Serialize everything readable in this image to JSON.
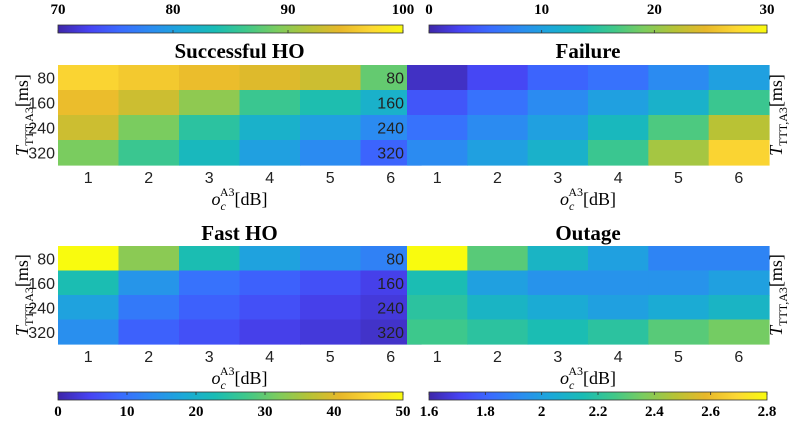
{
  "palette": [
    "#3e26a8",
    "#4743f3",
    "#3a6bff",
    "#2a8df0",
    "#1ba9d8",
    "#19bcb5",
    "#3fc88a",
    "#7ccc5e",
    "#b6c336",
    "#e8b82a",
    "#fcd733",
    "#f9fb0e"
  ],
  "chart_data": [
    {
      "type": "heatmap",
      "title": "Successful HO",
      "xlabel_base": "o",
      "xlabel_sub": "c",
      "xlabel_sup": "A3",
      "xlabel_unit": "[dB]",
      "ylabel_base": "T",
      "ylabel_sub": "TTT,A3",
      "ylabel_unit": "[ms]",
      "ylabel_side": "left",
      "x": [
        "1",
        "2",
        "3",
        "4",
        "5",
        "6"
      ],
      "y": [
        "80",
        "160",
        "240",
        "320"
      ],
      "z": [
        [
          97,
          96,
          95,
          94,
          93,
          88
        ],
        [
          95,
          93,
          90,
          86,
          84,
          82
        ],
        [
          93,
          89,
          85,
          82,
          80,
          78
        ],
        [
          89,
          86,
          83,
          80,
          78,
          75
        ]
      ],
      "clim": [
        70,
        100
      ],
      "colorbar_ticks": [
        "70",
        "80",
        "90",
        "100"
      ],
      "colorbar_position": "top"
    },
    {
      "type": "heatmap",
      "title": "Failure",
      "xlabel_base": "o",
      "xlabel_sub": "c",
      "xlabel_sup": "A3",
      "xlabel_unit": "[dB]",
      "ylabel_base": "T",
      "ylabel_sub": "TTT,A3",
      "ylabel_unit": "[ms]",
      "ylabel_side": "right",
      "x": [
        "1",
        "2",
        "3",
        "4",
        "5",
        "6"
      ],
      "y": [
        "80",
        "160",
        "240",
        "320"
      ],
      "z": [
        [
          1,
          3,
          5,
          6,
          8,
          10
        ],
        [
          4,
          6,
          8,
          10,
          12,
          16
        ],
        [
          6,
          8,
          10,
          13,
          17,
          22
        ],
        [
          8,
          10,
          12,
          16,
          21,
          27
        ]
      ],
      "clim": [
        0,
        30
      ],
      "colorbar_ticks": [
        "0",
        "10",
        "20",
        "30"
      ],
      "colorbar_position": "top"
    },
    {
      "type": "heatmap",
      "title": "Fast HO",
      "xlabel_base": "o",
      "xlabel_sub": "c",
      "xlabel_sup": "A3",
      "xlabel_unit": "[dB]",
      "ylabel_base": "T",
      "ylabel_sub": "TTT,A3",
      "ylabel_unit": "[ms]",
      "ylabel_side": "left",
      "x": [
        "1",
        "2",
        "3",
        "4",
        "5",
        "6"
      ],
      "y": [
        "80",
        "160",
        "240",
        "320"
      ],
      "z": [
        [
          50,
          33,
          23,
          17,
          14,
          12
        ],
        [
          23,
          15,
          10,
          8,
          6,
          4
        ],
        [
          17,
          11,
          8,
          6,
          4,
          3
        ],
        [
          14,
          8,
          6,
          4,
          3,
          2
        ]
      ],
      "clim": [
        0,
        50
      ],
      "colorbar_ticks": [
        "0",
        "10",
        "20",
        "30",
        "40",
        "50"
      ],
      "colorbar_position": "bottom"
    },
    {
      "type": "heatmap",
      "title": "Outage",
      "xlabel_base": "o",
      "xlabel_sub": "c",
      "xlabel_sup": "A3",
      "xlabel_unit": "[dB]",
      "ylabel_base": "T",
      "ylabel_sub": "TTT,A3",
      "ylabel_unit": "[ms]",
      "ylabel_side": "right",
      "x": [
        "1",
        "2",
        "3",
        "4",
        "5",
        "6"
      ],
      "y": [
        "80",
        "160",
        "240",
        "320"
      ],
      "z": [
        [
          2.8,
          2.3,
          2.1,
          2.0,
          1.9,
          1.9
        ],
        [
          2.15,
          2.0,
          1.95,
          1.95,
          1.95,
          2.0
        ],
        [
          2.2,
          2.1,
          2.05,
          2.0,
          2.05,
          2.1
        ],
        [
          2.25,
          2.2,
          2.15,
          2.2,
          2.3,
          2.35
        ]
      ],
      "clim": [
        1.6,
        2.8
      ],
      "colorbar_ticks": [
        "1.6",
        "1.8",
        "2",
        "2.2",
        "2.4",
        "2.6",
        "2.8"
      ],
      "colorbar_position": "bottom"
    }
  ]
}
